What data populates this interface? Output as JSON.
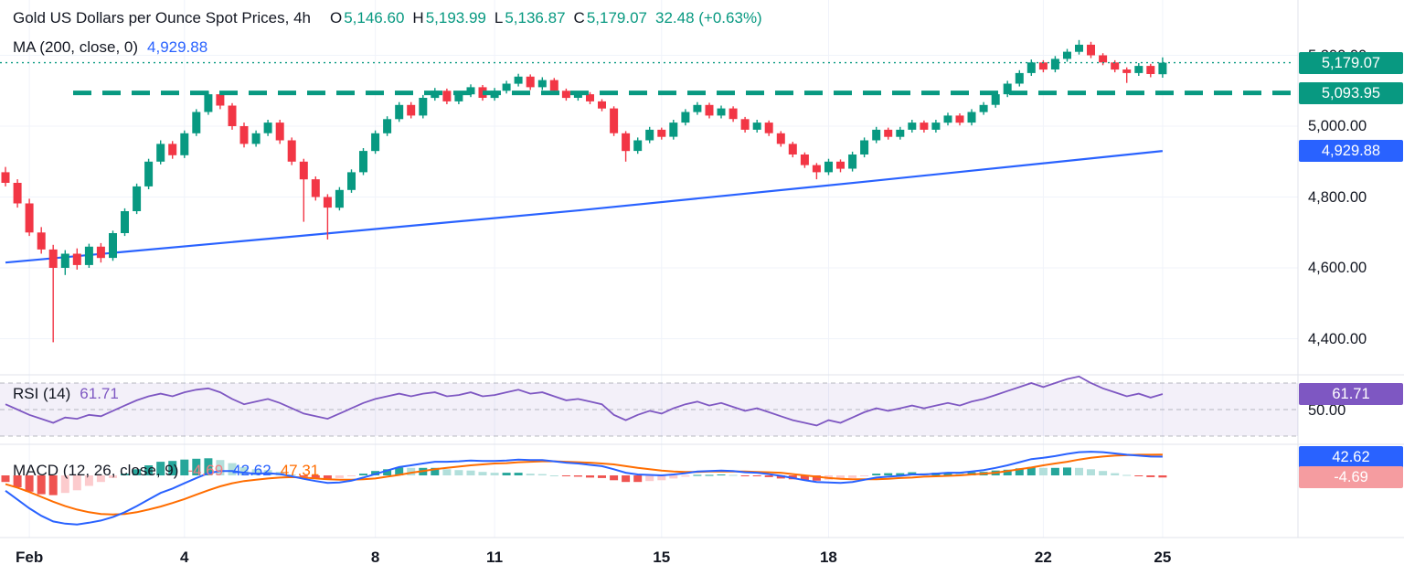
{
  "header": {
    "title": "Gold US Dollars per Ounce Spot Prices, 4h",
    "o_label": "O",
    "o": "5,146.60",
    "h_label": "H",
    "h": "5,193.99",
    "l_label": "L",
    "l": "5,136.87",
    "c_label": "C",
    "c": "5,179.07",
    "change": "32.48 (+0.63%)",
    "ma_label": "MA (200, close, 0)",
    "ma_value": "4,929.88"
  },
  "rsi_header": {
    "label": "RSI (14)",
    "value": "61.71"
  },
  "macd_header": {
    "label": "MACD (12, 26, close, 9)",
    "hist_value": "-4.69",
    "macd_value": "42.62",
    "signal_value": "47.31"
  },
  "colors": {
    "up": "#089981",
    "down": "#f23645",
    "ma": "#2962ff",
    "level": "#089981",
    "rsi": "#7e57c2",
    "macd": "#2962ff",
    "signal": "#ff6d00",
    "hist_up": "#26a69a",
    "hist_up_light": "#b2dfdb",
    "hist_down": "#ef5350",
    "hist_down_light": "#fccbcd",
    "badge_last": "#089981",
    "badge_level": "#089981",
    "badge_ma": "#2962ff",
    "badge_rsi": "#7e57c2",
    "badge_macd": "#2962ff",
    "badge_hist": "#f59ca0"
  },
  "price_axis": {
    "ticks": [
      {
        "label": "5,200.00",
        "value": 5200
      },
      {
        "label": "5,000.00",
        "value": 5000
      },
      {
        "label": "4,800.00",
        "value": 4800
      },
      {
        "label": "4,600.00",
        "value": 4600
      },
      {
        "label": "4,400.00",
        "value": 4400
      }
    ],
    "badges": [
      {
        "label": "5,179.07",
        "value": 5179.07,
        "panel": "main",
        "color_key": "badge_last"
      },
      {
        "label": "5,093.95",
        "value": 5093.95,
        "panel": "main",
        "color_key": "badge_level"
      },
      {
        "label": "4,929.88",
        "value": 4929.88,
        "panel": "main",
        "color_key": "badge_ma"
      },
      {
        "label": "61.71",
        "value": 61.71,
        "panel": "rsi",
        "color_key": "badge_rsi"
      },
      {
        "label": "42.62",
        "value": 42.62,
        "panel": "macd",
        "color_key": "badge_macd"
      },
      {
        "label": "-4.69",
        "value": -4.69,
        "panel": "macd",
        "color_key": "badge_hist"
      }
    ],
    "rsi_mid": {
      "label": "50.00",
      "value": 50
    }
  },
  "time_axis": {
    "ticks": [
      {
        "label": "Feb",
        "i": 2,
        "bold": true
      },
      {
        "label": "4",
        "i": 15,
        "bold": false
      },
      {
        "label": "8",
        "i": 31,
        "bold": false
      },
      {
        "label": "11",
        "i": 41,
        "bold": false
      },
      {
        "label": "15",
        "i": 55,
        "bold": false
      },
      {
        "label": "18",
        "i": 69,
        "bold": false
      },
      {
        "label": "22",
        "i": 87,
        "bold": false
      },
      {
        "label": "25",
        "i": 97,
        "bold": false
      }
    ]
  },
  "chart_data": {
    "type": "candlestick",
    "title": "Gold US Dollars per Ounce Spot Prices",
    "timeframe": "4h",
    "last_ohlc": {
      "open": 5146.6,
      "high": 5193.99,
      "low": 5136.87,
      "close": 5179.07,
      "change": 32.48,
      "change_pct": 0.63
    },
    "price_range": [
      4360,
      5330
    ],
    "level": 5093.95,
    "last_price": 5179.07,
    "ma200_last": 4929.88,
    "rsi_last": 61.71,
    "macd_last": 42.62,
    "signal_last": 47.31,
    "hist_last": -4.69,
    "x_labels": [
      "Feb",
      "4",
      "8",
      "11",
      "15",
      "18",
      "22",
      "25"
    ],
    "ma200": [
      [
        0,
        4615
      ],
      [
        24,
        4688
      ],
      [
        48,
        4762
      ],
      [
        72,
        4843
      ],
      [
        97,
        4929.88
      ]
    ],
    "candles": [
      [
        4870,
        4885,
        4830,
        4840
      ],
      [
        4840,
        4850,
        4770,
        4782
      ],
      [
        4782,
        4795,
        4690,
        4700
      ],
      [
        4700,
        4715,
        4640,
        4652
      ],
      [
        4652,
        4665,
        4390,
        4600
      ],
      [
        4600,
        4650,
        4580,
        4640
      ],
      [
        4640,
        4655,
        4595,
        4608
      ],
      [
        4608,
        4668,
        4600,
        4660
      ],
      [
        4660,
        4670,
        4615,
        4628
      ],
      [
        4628,
        4705,
        4620,
        4698
      ],
      [
        4698,
        4768,
        4690,
        4760
      ],
      [
        4760,
        4838,
        4752,
        4830
      ],
      [
        4830,
        4908,
        4822,
        4900
      ],
      [
        4900,
        4960,
        4892,
        4950
      ],
      [
        4950,
        4958,
        4908,
        4918
      ],
      [
        4918,
        4988,
        4910,
        4980
      ],
      [
        4980,
        5048,
        4972,
        5040
      ],
      [
        5040,
        5100,
        5032,
        5090
      ],
      [
        5090,
        5098,
        5048,
        5058
      ],
      [
        5058,
        5065,
        4990,
        5000
      ],
      [
        5000,
        5010,
        4940,
        4950
      ],
      [
        4950,
        4988,
        4942,
        4980
      ],
      [
        4980,
        5018,
        4972,
        5010
      ],
      [
        5010,
        5018,
        4950,
        4960
      ],
      [
        4960,
        4968,
        4890,
        4900
      ],
      [
        4900,
        4908,
        4730,
        4850
      ],
      [
        4850,
        4858,
        4790,
        4800
      ],
      [
        4800,
        4808,
        4680,
        4770
      ],
      [
        4770,
        4828,
        4762,
        4820
      ],
      [
        4820,
        4878,
        4812,
        4870
      ],
      [
        4870,
        4938,
        4862,
        4930
      ],
      [
        4930,
        4988,
        4922,
        4980
      ],
      [
        4980,
        5028,
        4972,
        5020
      ],
      [
        5020,
        5068,
        5012,
        5060
      ],
      [
        5060,
        5068,
        5022,
        5030
      ],
      [
        5030,
        5088,
        5022,
        5080
      ],
      [
        5080,
        5108,
        5072,
        5100
      ],
      [
        5100,
        5106,
        5062,
        5070
      ],
      [
        5070,
        5098,
        5062,
        5090
      ],
      [
        5090,
        5118,
        5082,
        5110
      ],
      [
        5110,
        5116,
        5072,
        5080
      ],
      [
        5080,
        5108,
        5072,
        5100
      ],
      [
        5100,
        5128,
        5092,
        5120
      ],
      [
        5120,
        5148,
        5112,
        5140
      ],
      [
        5140,
        5146,
        5102,
        5110
      ],
      [
        5110,
        5138,
        5102,
        5130
      ],
      [
        5130,
        5136,
        5092,
        5100
      ],
      [
        5100,
        5106,
        5072,
        5080
      ],
      [
        5080,
        5098,
        5072,
        5090
      ],
      [
        5090,
        5096,
        5062,
        5070
      ],
      [
        5070,
        5076,
        5042,
        5050
      ],
      [
        5050,
        5056,
        4972,
        4980
      ],
      [
        4980,
        4986,
        4900,
        4930
      ],
      [
        4930,
        4968,
        4922,
        4960
      ],
      [
        4960,
        4998,
        4952,
        4990
      ],
      [
        4990,
        4996,
        4962,
        4970
      ],
      [
        4970,
        5018,
        4962,
        5010
      ],
      [
        5010,
        5048,
        5002,
        5040
      ],
      [
        5040,
        5068,
        5032,
        5060
      ],
      [
        5060,
        5066,
        5022,
        5030
      ],
      [
        5030,
        5058,
        5022,
        5050
      ],
      [
        5050,
        5056,
        5012,
        5020
      ],
      [
        5020,
        5026,
        4982,
        4990
      ],
      [
        4990,
        5018,
        4982,
        5010
      ],
      [
        5010,
        5016,
        4972,
        4980
      ],
      [
        4980,
        4986,
        4942,
        4950
      ],
      [
        4950,
        4956,
        4912,
        4920
      ],
      [
        4920,
        4926,
        4882,
        4890
      ],
      [
        4890,
        4896,
        4850,
        4870
      ],
      [
        4870,
        4908,
        4862,
        4900
      ],
      [
        4900,
        4906,
        4870,
        4880
      ],
      [
        4880,
        4928,
        4872,
        4920
      ],
      [
        4920,
        4968,
        4912,
        4960
      ],
      [
        4960,
        4998,
        4952,
        4990
      ],
      [
        4990,
        4996,
        4962,
        4970
      ],
      [
        4970,
        4998,
        4962,
        4990
      ],
      [
        4990,
        5018,
        4982,
        5010
      ],
      [
        5010,
        5016,
        4982,
        4990
      ],
      [
        4990,
        5018,
        4982,
        5010
      ],
      [
        5010,
        5038,
        5002,
        5030
      ],
      [
        5030,
        5036,
        5002,
        5010
      ],
      [
        5010,
        5048,
        5002,
        5040
      ],
      [
        5040,
        5068,
        5032,
        5060
      ],
      [
        5060,
        5098,
        5052,
        5090
      ],
      [
        5090,
        5128,
        5082,
        5120
      ],
      [
        5120,
        5158,
        5112,
        5150
      ],
      [
        5150,
        5188,
        5142,
        5180
      ],
      [
        5180,
        5186,
        5152,
        5160
      ],
      [
        5160,
        5198,
        5152,
        5190
      ],
      [
        5190,
        5218,
        5182,
        5210
      ],
      [
        5210,
        5243,
        5202,
        5230
      ],
      [
        5230,
        5238,
        5192,
        5200
      ],
      [
        5200,
        5206,
        5172,
        5180
      ],
      [
        5180,
        5186,
        5152,
        5160
      ],
      [
        5160,
        5166,
        5122,
        5150
      ],
      [
        5150,
        5178,
        5142,
        5170
      ],
      [
        5170,
        5176,
        5138,
        5147
      ],
      [
        5146.6,
        5193.99,
        5136.87,
        5179.07
      ]
    ],
    "rsi": [
      54,
      50,
      46,
      43,
      40,
      44,
      43,
      46,
      45,
      49,
      53,
      57,
      60,
      62,
      60,
      63,
      65,
      66,
      63,
      58,
      54,
      56,
      58,
      55,
      51,
      47,
      45,
      43,
      47,
      51,
      55,
      58,
      60,
      62,
      60,
      62,
      63,
      60,
      61,
      63,
      60,
      61,
      63,
      65,
      62,
      63,
      60,
      57,
      58,
      56,
      54,
      46,
      42,
      46,
      49,
      47,
      51,
      54,
      56,
      53,
      55,
      52,
      49,
      51,
      48,
      45,
      42,
      40,
      38,
      42,
      40,
      44,
      48,
      51,
      49,
      51,
      53,
      51,
      53,
      55,
      53,
      56,
      58,
      61,
      64,
      67,
      70,
      67,
      70,
      73,
      75,
      70,
      66,
      63,
      60,
      62,
      59,
      61.71
    ],
    "macd": [
      -35,
      -55,
      -75,
      -92,
      -105,
      -110,
      -112,
      -108,
      -103,
      -95,
      -84,
      -70,
      -55,
      -40,
      -30,
      -18,
      -6,
      5,
      10,
      10,
      6,
      4,
      5,
      3,
      -2,
      -8,
      -13,
      -17,
      -16,
      -12,
      -5,
      3,
      11,
      19,
      23,
      27,
      31,
      31,
      32,
      34,
      33,
      33,
      34,
      36,
      35,
      35,
      32,
      29,
      27,
      24,
      21,
      14,
      6,
      2,
      1,
      0,
      2,
      5,
      9,
      10,
      11,
      10,
      7,
      6,
      3,
      -1,
      -6,
      -11,
      -15,
      -16,
      -17,
      -15,
      -10,
      -5,
      -3,
      -1,
      2,
      2,
      4,
      6,
      6,
      9,
      12,
      17,
      23,
      30,
      37,
      40,
      44,
      49,
      53,
      54,
      53,
      50,
      47,
      45,
      43,
      42.62
    ],
    "signal": [
      -20,
      -28,
      -38,
      -49,
      -60,
      -70,
      -78,
      -84,
      -88,
      -89,
      -88,
      -84,
      -78,
      -71,
      -63,
      -54,
      -44,
      -34,
      -25,
      -18,
      -13,
      -10,
      -7,
      -5,
      -4,
      -5,
      -7,
      -9,
      -10,
      -10,
      -9,
      -7,
      -3,
      1,
      6,
      10,
      14,
      17,
      20,
      23,
      25,
      27,
      28,
      30,
      31,
      32,
      32,
      31,
      30,
      29,
      27,
      25,
      21,
      17,
      14,
      11,
      9,
      8,
      8,
      9,
      9,
      9,
      9,
      8,
      7,
      6,
      3,
      0,
      -3,
      -6,
      -8,
      -9,
      -9,
      -9,
      -8,
      -6,
      -5,
      -3,
      -2,
      -1,
      0,
      2,
      4,
      6,
      10,
      14,
      18,
      23,
      27,
      31,
      36,
      40,
      43,
      45,
      46,
      47,
      47,
      47.31
    ]
  }
}
